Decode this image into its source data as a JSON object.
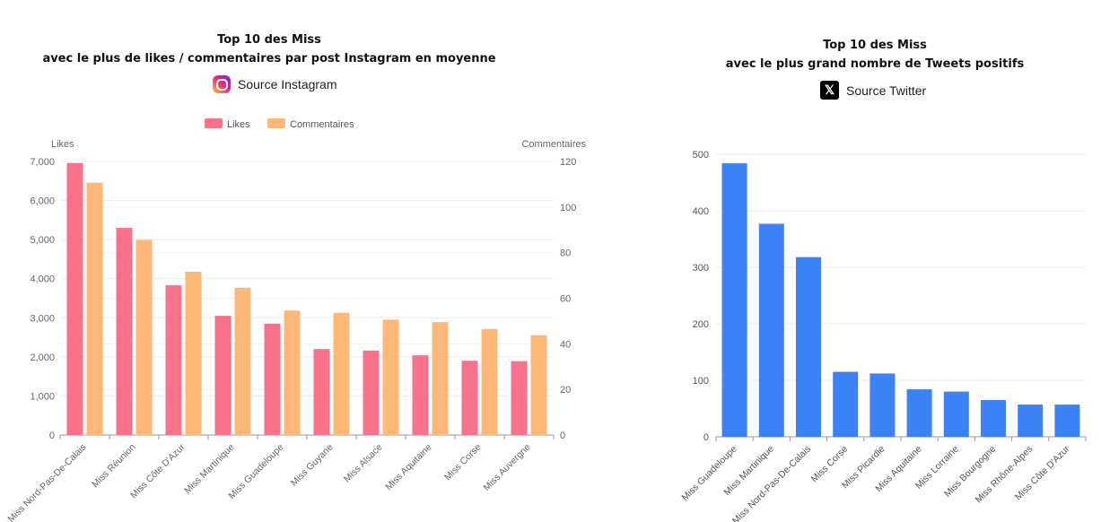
{
  "left": {
    "title_line1": "Top 10 des Miss",
    "title_line2": "avec le plus de likes / commentaires par post Instagram en moyenne",
    "source": "Source Instagram",
    "source_icon": "instagram-icon"
  },
  "right": {
    "title_line1": "Top 10 des Miss",
    "title_line2": "avec le plus grand nombre de Tweets positifs",
    "source": "Source Twitter",
    "source_icon": "x-icon",
    "source_icon_glyph": "𝕏"
  },
  "chart_data": [
    {
      "type": "bar",
      "categories": [
        "Miss Nord-Pas-De-Calais",
        "Miss Réunion",
        "Miss Côte D'Azur",
        "Miss Martinique",
        "Miss Guadeloupe",
        "Miss Guyane",
        "Miss Alsace",
        "Miss Aquitaine",
        "Miss Corse",
        "Miss Auvergne"
      ],
      "series": [
        {
          "name": "Likes",
          "axis": "left",
          "color": "#f7728a",
          "values": [
            6960,
            5300,
            3830,
            3050,
            2850,
            2200,
            2160,
            2040,
            1900,
            1890
          ]
        },
        {
          "name": "Commentaires",
          "axis": "right",
          "color": "#fdb878",
          "values": [
            110.7,
            85.6,
            71.6,
            64.6,
            54.6,
            53.6,
            50.6,
            49.5,
            46.5,
            43.7
          ]
        }
      ],
      "ylabel": "Likes",
      "y2label": "Commentaires",
      "ylim": [
        0,
        7000
      ],
      "y2lim": [
        0,
        120
      ],
      "yticks": [
        "0",
        "1,000",
        "2,000",
        "3,000",
        "4,000",
        "5,000",
        "6,000",
        "7,000"
      ],
      "y2ticks": [
        "0",
        "20",
        "40",
        "60",
        "80",
        "100",
        "120"
      ],
      "grid": true,
      "legend": "top"
    },
    {
      "type": "bar",
      "categories": [
        "Miss Guadeloupe",
        "Miss Martinique",
        "Miss Nord-Pas-De-Calais",
        "Miss Corse",
        "Miss Picardie",
        "Miss Aquitaine",
        "Miss Lorraine",
        "Miss Bourgogne",
        "Miss Rhône-Alpes",
        "Miss Côte D'Azur"
      ],
      "values": [
        484,
        377,
        318,
        115,
        112,
        84,
        80,
        65,
        57,
        57
      ],
      "color": "#3b82f6",
      "ylim": [
        0,
        500
      ],
      "yticks": [
        "0",
        "100",
        "200",
        "300",
        "400",
        "500"
      ],
      "grid": true
    }
  ]
}
